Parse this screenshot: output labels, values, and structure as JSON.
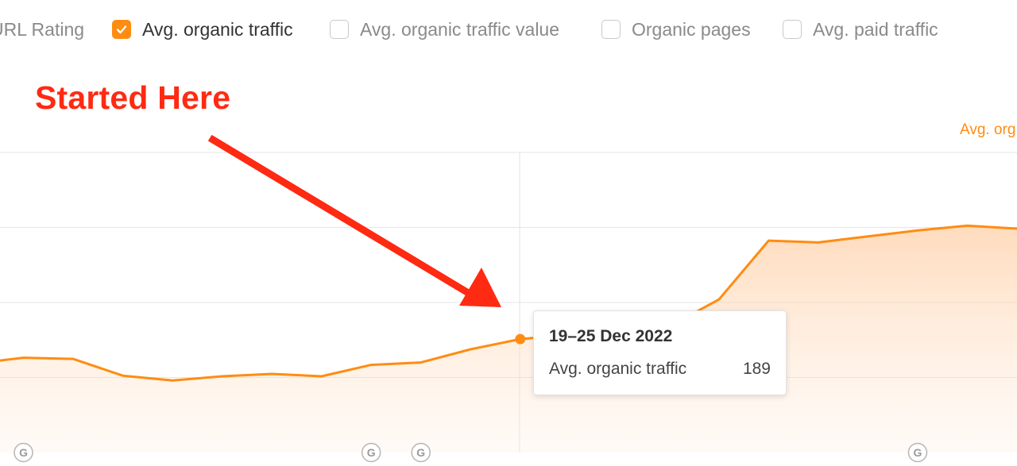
{
  "legend": {
    "items": [
      {
        "label": "URL Rating",
        "checked": false
      },
      {
        "label": "Avg. organic traffic",
        "checked": true
      },
      {
        "label": "Avg. organic traffic value",
        "checked": false
      },
      {
        "label": "Organic pages",
        "checked": false
      },
      {
        "label": "Avg. paid traffic",
        "checked": false
      }
    ]
  },
  "annotation": {
    "text": "Started Here",
    "color": "#ff2a12"
  },
  "series_tag": "Avg. org",
  "tooltip": {
    "date": "19–25 Dec 2022",
    "series_label": "Avg. organic traffic",
    "value": "189"
  },
  "google_update_marker": "G",
  "colors": {
    "accent": "#ff8c12",
    "annotation": "#ff2a12",
    "grid": "#e6e6e6"
  },
  "chart_data": {
    "type": "area",
    "title": "",
    "xlabel": "",
    "ylabel": "",
    "grid": true,
    "ylim": [
      0,
      500
    ],
    "series": [
      {
        "name": "Avg. organic traffic",
        "values": [
          148,
          158,
          156,
          128,
          120,
          127,
          131,
          127,
          146,
          150,
          172,
          189,
          196,
          210,
          210,
          255,
          353,
          350,
          360,
          370,
          378,
          373
        ]
      }
    ],
    "highlight_index": 11,
    "google_update_indices": [
      1,
      8,
      9,
      19
    ]
  }
}
